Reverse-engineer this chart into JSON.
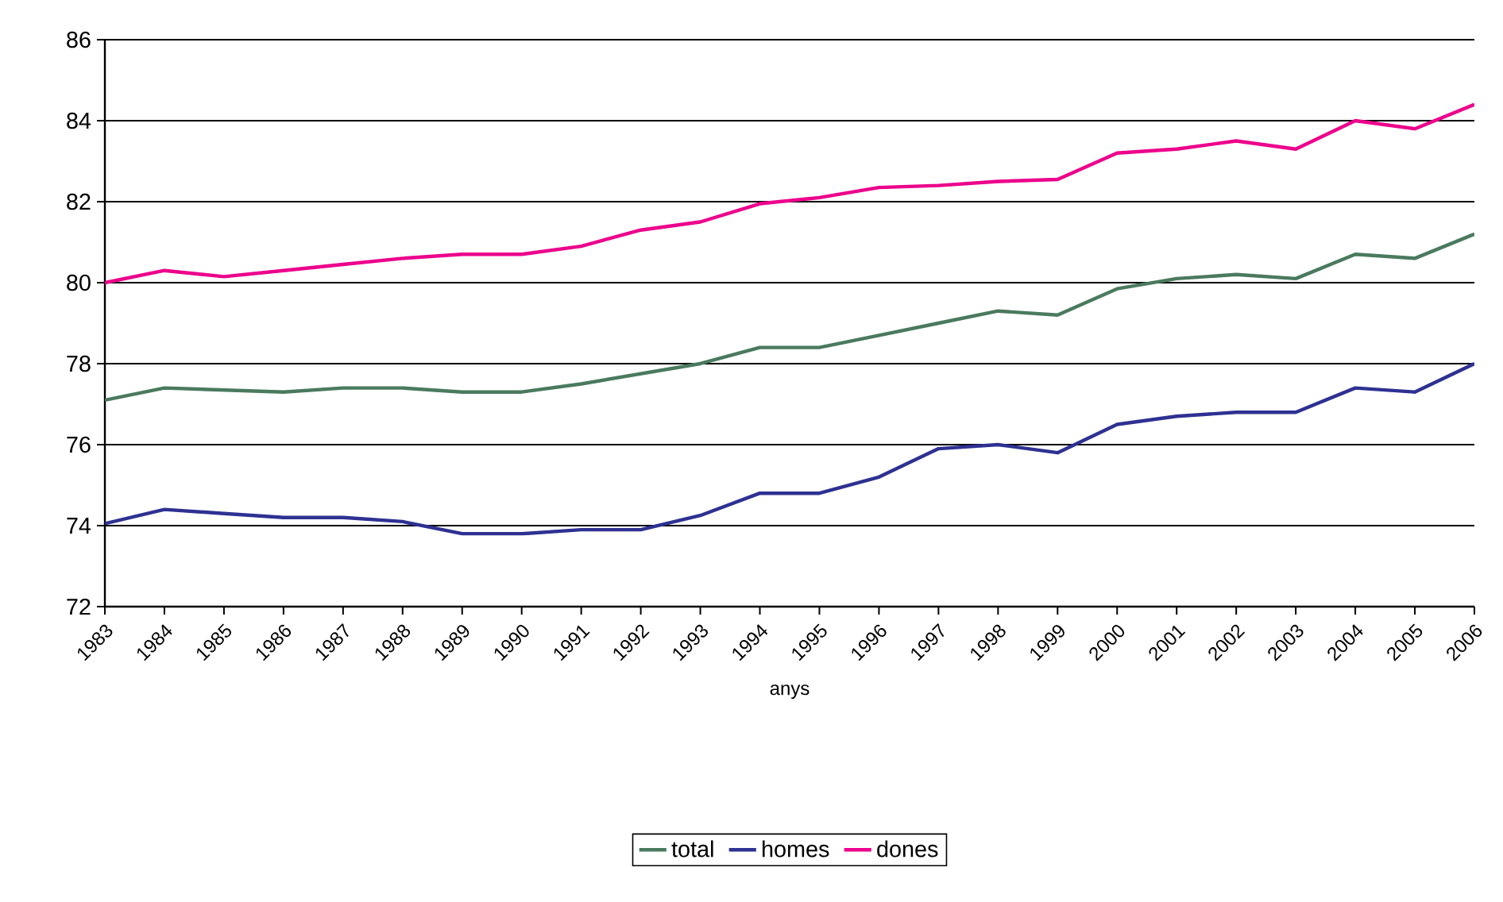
{
  "chart_data": {
    "type": "line",
    "xlabel": "anys",
    "categories": [
      "1983",
      "1984",
      "1985",
      "1986",
      "1987",
      "1988",
      "1989",
      "1990",
      "1991",
      "1992",
      "1993",
      "1994",
      "1995",
      "1996",
      "1997",
      "1998",
      "1999",
      "2000",
      "2001",
      "2002",
      "2003",
      "2004",
      "2005",
      "2006"
    ],
    "series": [
      {
        "name": "total",
        "color": "#4a7a5e",
        "values": [
          77.1,
          77.4,
          77.35,
          77.3,
          77.4,
          77.4,
          77.3,
          77.3,
          77.5,
          77.75,
          78.0,
          78.4,
          78.4,
          78.7,
          79.0,
          79.3,
          79.2,
          79.85,
          80.1,
          80.2,
          80.1,
          80.7,
          80.6,
          81.2
        ]
      },
      {
        "name": "homes",
        "color": "#2e3192",
        "values": [
          74.05,
          74.4,
          74.3,
          74.2,
          74.2,
          74.1,
          73.8,
          73.8,
          73.9,
          73.9,
          74.25,
          74.8,
          74.8,
          75.2,
          75.9,
          76.0,
          75.8,
          76.5,
          76.7,
          76.8,
          76.8,
          77.4,
          77.3,
          78.0
        ]
      },
      {
        "name": "dones",
        "color": "#ec008c",
        "values": [
          80.0,
          80.3,
          80.15,
          80.3,
          80.45,
          80.6,
          80.7,
          80.7,
          80.9,
          81.3,
          81.5,
          81.95,
          82.1,
          82.35,
          82.4,
          82.5,
          82.55,
          83.2,
          83.3,
          83.5,
          83.3,
          84.0,
          83.8,
          84.4
        ]
      }
    ],
    "ylim": [
      72,
      86
    ],
    "yticks": [
      72,
      74,
      76,
      78,
      80,
      82,
      84,
      86
    ],
    "grid": "y",
    "legend": "bottom",
    "marker": "none",
    "line_style": "solid"
  }
}
